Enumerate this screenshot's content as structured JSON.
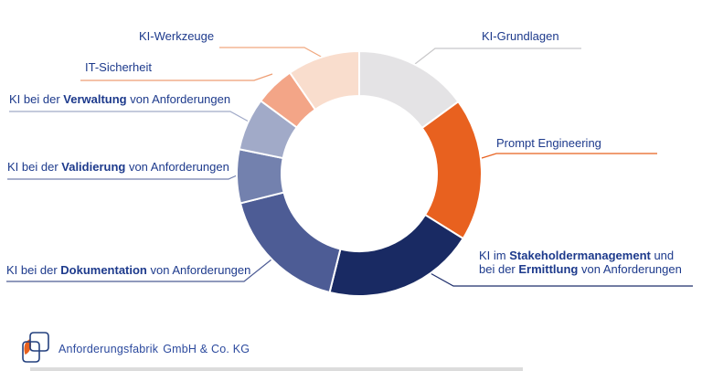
{
  "chart_data": {
    "type": "pie",
    "style": "donut",
    "title": "",
    "legend_position": "callout-labels",
    "segments": [
      {
        "id": "ki-grundlagen",
        "label": "KI-Grundlagen",
        "percent": 15,
        "start_deg": 0,
        "end_deg": 54,
        "color": "#e4e3e5",
        "line_color": "#c8c7c9"
      },
      {
        "id": "prompt-engineering",
        "label": "Prompt Engineering",
        "percent": 19,
        "start_deg": 54,
        "end_deg": 122,
        "color": "#e8611f",
        "line_color": "#e8611f"
      },
      {
        "id": "stakeholder-ermittlung",
        "label": "KI im Stakeholdermanagement und bei der Ermittlung von Anforderungen",
        "percent": 20,
        "start_deg": 122,
        "end_deg": 194,
        "color": "#192a63",
        "line_color": "#1d2d6b"
      },
      {
        "id": "dokumentation",
        "label": "KI bei der Dokumentation von Anforderungen",
        "percent": 17,
        "start_deg": 194,
        "end_deg": 256,
        "color": "#4d5c95",
        "line_color": "#4d5c95"
      },
      {
        "id": "validierung",
        "label": "KI bei der Validierung von Anforderungen",
        "percent": 7,
        "start_deg": 256,
        "end_deg": 281.5,
        "color": "#7381ae",
        "line_color": "#7381ae"
      },
      {
        "id": "verwaltung",
        "label": "KI bei der Verwaltung von Anforderungen",
        "percent": 7,
        "start_deg": 281.5,
        "end_deg": 306.5,
        "color": "#a1aac8",
        "line_color": "#a1aac8"
      },
      {
        "id": "it-sicherheit",
        "label": "IT-Sicherheit",
        "percent": 5,
        "start_deg": 306.5,
        "end_deg": 325.5,
        "color": "#f3a587",
        "line_color": "#ee9e74"
      },
      {
        "id": "ki-werkzeuge",
        "label": "KI-Werkzeuge",
        "percent": 10,
        "start_deg": 325.5,
        "end_deg": 360,
        "color": "#f9ddcd",
        "line_color": "#f0a87f"
      }
    ]
  },
  "labels": {
    "ki_werkzeuge": {
      "text": "KI-Werkzeuge"
    },
    "ki_grundlagen": {
      "text": "KI-Grundlagen"
    },
    "it_sicherheit": {
      "text": "IT-Sicherheit"
    },
    "verwaltung": {
      "pre": "KI bei der ",
      "bold": "Verwaltung",
      "post": " von Anforderungen"
    },
    "prompt_engineering": {
      "text": "Prompt Engineering"
    },
    "validierung": {
      "pre": "KI bei der ",
      "bold": "Validierung",
      "post": " von Anforderungen"
    },
    "dokumentation": {
      "pre": "KI bei der ",
      "bold": "Dokumentation",
      "post": " von Anforderungen"
    },
    "stakeholder": {
      "line1_pre": "KI im ",
      "line1_bold": "Stakeholdermanagement",
      "line1_post": " und",
      "line2_pre": "bei der ",
      "line2_bold": "Ermittlung",
      "line2_post": " von Anforderungen"
    }
  },
  "footer": {
    "company": "Anforderungsfabrik",
    "suffix": "GmbH & Co. KG"
  },
  "colors": {
    "label_text": "#1d3a8c",
    "logo_text": "#2c4a9e",
    "logo_stroke": "#24417f",
    "logo_orange": "#e8611f",
    "background": "#ffffff"
  }
}
